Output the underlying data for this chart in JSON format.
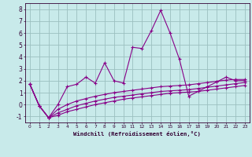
{
  "xlabel": "Windchill (Refroidissement éolien,°C)",
  "bg_color": "#c8eaea",
  "line_color": "#880088",
  "grid_color": "#9bbfbf",
  "x": [
    0,
    1,
    2,
    3,
    4,
    5,
    6,
    7,
    8,
    9,
    10,
    11,
    12,
    13,
    14,
    15,
    16,
    17,
    18,
    19,
    20,
    21,
    22,
    23
  ],
  "y_main": [
    1.7,
    -0.1,
    -1.1,
    0.0,
    1.5,
    1.7,
    2.3,
    1.8,
    3.5,
    2.0,
    1.8,
    4.8,
    4.7,
    6.2,
    7.9,
    6.0,
    3.8,
    0.7,
    1.1,
    1.5,
    1.9,
    2.3,
    2.0,
    2.0
  ],
  "y_line1": [
    1.7,
    -0.1,
    -1.1,
    -0.9,
    -0.6,
    -0.4,
    -0.2,
    0.0,
    0.15,
    0.3,
    0.45,
    0.55,
    0.65,
    0.75,
    0.85,
    0.95,
    1.0,
    1.05,
    1.1,
    1.2,
    1.3,
    1.4,
    1.5,
    1.6
  ],
  "y_line2": [
    1.7,
    -0.1,
    -1.1,
    -0.7,
    -0.4,
    -0.1,
    0.1,
    0.3,
    0.45,
    0.6,
    0.7,
    0.8,
    0.9,
    1.0,
    1.1,
    1.15,
    1.2,
    1.25,
    1.35,
    1.45,
    1.55,
    1.65,
    1.75,
    1.85
  ],
  "y_line3": [
    1.7,
    -0.1,
    -1.1,
    -0.4,
    0.0,
    0.3,
    0.5,
    0.7,
    0.85,
    1.0,
    1.1,
    1.2,
    1.3,
    1.4,
    1.5,
    1.55,
    1.6,
    1.65,
    1.75,
    1.85,
    1.95,
    2.05,
    2.1,
    2.1
  ],
  "ylim": [
    -1.5,
    8.5
  ],
  "xlim": [
    -0.5,
    23.5
  ],
  "yticks": [
    -1,
    0,
    1,
    2,
    3,
    4,
    5,
    6,
    7,
    8
  ],
  "xticks": [
    0,
    1,
    2,
    3,
    4,
    5,
    6,
    7,
    8,
    9,
    10,
    11,
    12,
    13,
    14,
    15,
    16,
    17,
    18,
    19,
    20,
    21,
    22,
    23
  ]
}
